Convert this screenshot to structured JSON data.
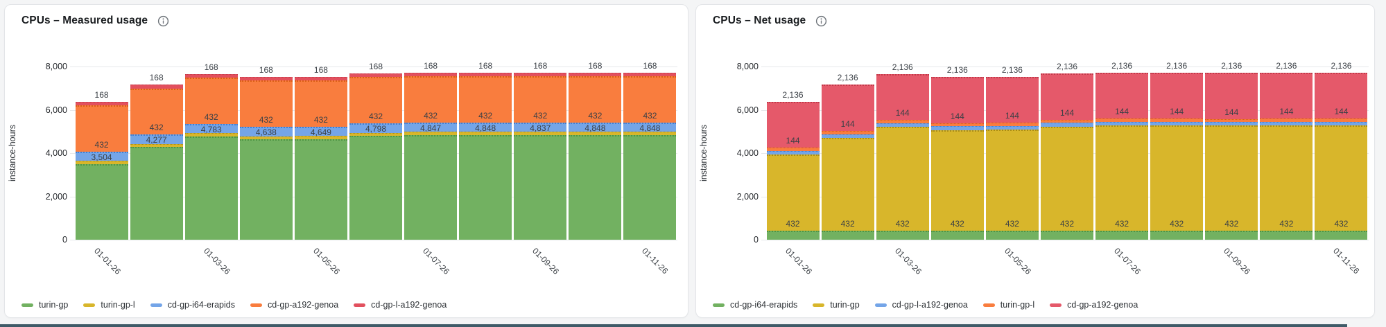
{
  "page": {
    "background_color": "#f4f5f6",
    "accent_bar_color": "#3f5b68"
  },
  "charts": [
    {
      "title": "CPUs – Measured usage",
      "info_icon": "info-icon",
      "ylabel": "instance-hours",
      "chart_data": {
        "type": "bar",
        "stacked": true,
        "grid": true,
        "legend_position": "bottom",
        "ylim": [
          0,
          8000
        ],
        "y_ticks": [
          0,
          2000,
          4000,
          6000,
          8000
        ],
        "y_tick_labels": [
          "0",
          "2,000",
          "4,000",
          "6,000",
          "8,000"
        ],
        "num_bars": 11,
        "x_tick_positions": [
          0,
          2,
          4,
          6,
          8,
          10
        ],
        "x_tick_labels": [
          "01-01-26",
          "01-03-26",
          "01-05-26",
          "01-07-26",
          "01-09-26",
          "01-11-26"
        ],
        "series": [
          {
            "name": "turin-gp",
            "color": "#72b161",
            "border": "#4e9544",
            "show_labels": true,
            "values": [
              3504,
              4277,
              4783,
              4638,
              4649,
              4798,
              4847,
              4848,
              4837,
              4848,
              4848
            ]
          },
          {
            "name": "turin-gp-l",
            "color": "#d8b62b",
            "border": "#ab8c13",
            "show_labels": false,
            "values": [
              144,
              144,
              144,
              144,
              144,
              144,
              144,
              144,
              144,
              144,
              144
            ]
          },
          {
            "name": "cd-gp-i64-erapids",
            "color": "#74a5e8",
            "border": "#3f7fd4",
            "show_labels": true,
            "values": [
              432,
              432,
              432,
              432,
              432,
              432,
              432,
              432,
              432,
              432,
              432
            ]
          },
          {
            "name": "cd-gp-a192-genoa",
            "color": "#f97d3e",
            "border": "#d95f15",
            "show_labels": false,
            "values": [
              2136,
              2136,
              2136,
              2136,
              2136,
              2136,
              2136,
              2136,
              2136,
              2136,
              2136
            ]
          },
          {
            "name": "cd-gp-l-a192-genoa",
            "color": "#e2505e",
            "border": "#c23a4a",
            "show_labels": true,
            "values": [
              168,
              168,
              168,
              168,
              168,
              168,
              168,
              168,
              168,
              168,
              168
            ]
          }
        ]
      }
    },
    {
      "title": "CPUs – Net usage",
      "info_icon": "info-icon",
      "ylabel": "instance-hours",
      "chart_data": {
        "type": "bar",
        "stacked": true,
        "grid": true,
        "legend_position": "bottom",
        "ylim": [
          0,
          8000
        ],
        "y_ticks": [
          0,
          2000,
          4000,
          6000,
          8000
        ],
        "y_tick_labels": [
          "0",
          "2,000",
          "4,000",
          "6,000",
          "8,000"
        ],
        "num_bars": 11,
        "x_tick_positions": [
          0,
          2,
          4,
          6,
          8,
          10
        ],
        "x_tick_labels": [
          "01-01-26",
          "01-03-26",
          "01-05-26",
          "01-07-26",
          "01-09-26",
          "01-11-26"
        ],
        "series": [
          {
            "name": "cd-gp-i64-erapids",
            "color": "#72b161",
            "border": "#4e9544",
            "show_labels": true,
            "values": [
              432,
              432,
              432,
              432,
              432,
              432,
              432,
              432,
              432,
              432,
              432
            ]
          },
          {
            "name": "turin-gp",
            "color": "#d8b62b",
            "border": "#ab8c13",
            "show_labels": false,
            "values": [
              3504,
              4277,
              4783,
              4638,
              4649,
              4798,
              4847,
              4848,
              4837,
              4848,
              4848
            ]
          },
          {
            "name": "cd-gp-l-a192-genoa",
            "color": "#74a5e8",
            "border": "#3f7fd4",
            "show_labels": false,
            "values": [
              168,
              168,
              168,
              168,
              168,
              168,
              168,
              168,
              168,
              168,
              168
            ]
          },
          {
            "name": "turin-gp-l",
            "color": "#f97d3e",
            "border": "#d95f15",
            "show_labels": true,
            "values": [
              144,
              144,
              144,
              144,
              144,
              144,
              144,
              144,
              144,
              144,
              144
            ]
          },
          {
            "name": "cd-gp-a192-genoa",
            "color": "#e5596a",
            "border": "#c23a4a",
            "show_labels": true,
            "values": [
              2136,
              2136,
              2136,
              2136,
              2136,
              2136,
              2136,
              2136,
              2136,
              2136,
              2136
            ]
          }
        ]
      }
    }
  ]
}
